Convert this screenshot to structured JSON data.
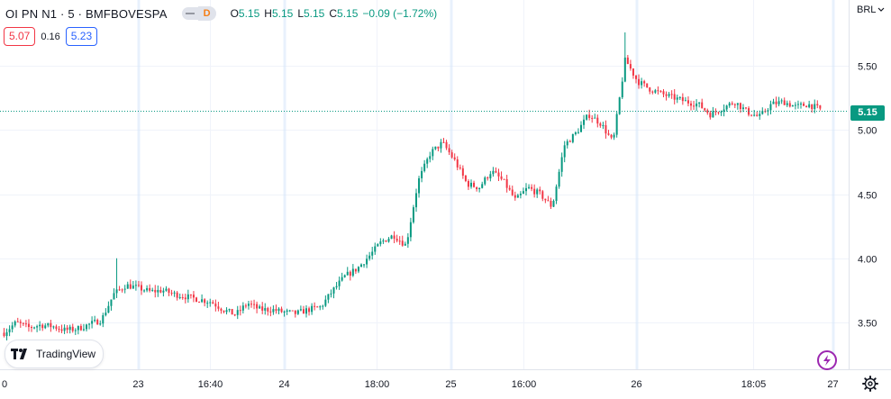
{
  "header": {
    "title": "OI PN N1 · 5 · BMFBOVESPA",
    "interval_badge": "D",
    "ohlc": [
      {
        "key": "O",
        "value": "5.15"
      },
      {
        "key": "H",
        "value": "5.15"
      },
      {
        "key": "L",
        "value": "5.15"
      },
      {
        "key": "C",
        "value": "5.15"
      }
    ],
    "change": "−0.09 (−1.72%)"
  },
  "quote": {
    "bid": "5.07",
    "spread": "0.16",
    "ask": "5.23"
  },
  "branding": {
    "logo_text": "TradingView"
  },
  "currency": "BRL",
  "last_price_label": "5.15",
  "colors": {
    "up": "#089981",
    "down": "#f23645",
    "grid": "#f0f3fa",
    "session": "#d5e6f9",
    "text": "#131722",
    "accent": "#9c27b0"
  },
  "chart_data": {
    "type": "candlestick",
    "symbol": "OI PN N1",
    "interval": "5",
    "exchange": "BMFBOVESPA",
    "currency": "BRL",
    "last_price": 5.15,
    "ylim": [
      3.2,
      5.9
    ],
    "y_ticks": [
      "3.50",
      "4.00",
      "4.50",
      "5.00",
      "5.50"
    ],
    "x_ticks": [
      "0",
      "23",
      "16:40",
      "24",
      "18:00",
      "25",
      "16:00",
      "26",
      "18:05",
      "27"
    ],
    "session_breaks": [
      "23",
      "24",
      "25",
      "26",
      "27"
    ],
    "price_path": [
      [
        0,
        3.42
      ],
      [
        1,
        3.5
      ],
      [
        2,
        3.46
      ],
      [
        3,
        3.48
      ],
      [
        4,
        3.47
      ],
      [
        5,
        3.44
      ],
      [
        6,
        3.45
      ],
      [
        8,
        3.52
      ],
      [
        9,
        3.72
      ],
      [
        10,
        3.79
      ],
      [
        11,
        3.77
      ],
      [
        12,
        3.74
      ],
      [
        13,
        3.75
      ],
      [
        14,
        3.72
      ],
      [
        15,
        3.7
      ],
      [
        16,
        3.68
      ],
      [
        17,
        3.66
      ],
      [
        18,
        3.6
      ],
      [
        19,
        3.56
      ],
      [
        20,
        3.65
      ],
      [
        21,
        3.6
      ],
      [
        22,
        3.6
      ],
      [
        23,
        3.58
      ],
      [
        24,
        3.57
      ],
      [
        25,
        3.6
      ],
      [
        26,
        3.62
      ],
      [
        27,
        3.75
      ],
      [
        28,
        3.86
      ],
      [
        29,
        3.92
      ],
      [
        30,
        4.02
      ],
      [
        31,
        4.13
      ],
      [
        32,
        4.18
      ],
      [
        33,
        4.1
      ],
      [
        34,
        4.6
      ],
      [
        35,
        4.82
      ],
      [
        36,
        4.9
      ],
      [
        37,
        4.76
      ],
      [
        38,
        4.58
      ],
      [
        39,
        4.55
      ],
      [
        40,
        4.68
      ],
      [
        41,
        4.6
      ],
      [
        42,
        4.45
      ],
      [
        43,
        4.55
      ],
      [
        44,
        4.5
      ],
      [
        45,
        4.4
      ],
      [
        46,
        4.88
      ],
      [
        47,
        4.98
      ],
      [
        48,
        5.12
      ],
      [
        49,
        5.05
      ],
      [
        50,
        4.9
      ],
      [
        51,
        5.55
      ],
      [
        52,
        5.38
      ],
      [
        53,
        5.32
      ],
      [
        54,
        5.28
      ],
      [
        55,
        5.25
      ],
      [
        56,
        5.22
      ],
      [
        57,
        5.2
      ],
      [
        58,
        5.12
      ],
      [
        59,
        5.17
      ],
      [
        60,
        5.22
      ],
      [
        61,
        5.14
      ],
      [
        62,
        5.1
      ],
      [
        63,
        5.2
      ],
      [
        64,
        5.22
      ],
      [
        65,
        5.18
      ],
      [
        66,
        5.2
      ],
      [
        67,
        5.16
      ]
    ],
    "extremes": {
      "high": 5.76,
      "low": 3.36,
      "spike_23_high": 4.0
    }
  }
}
